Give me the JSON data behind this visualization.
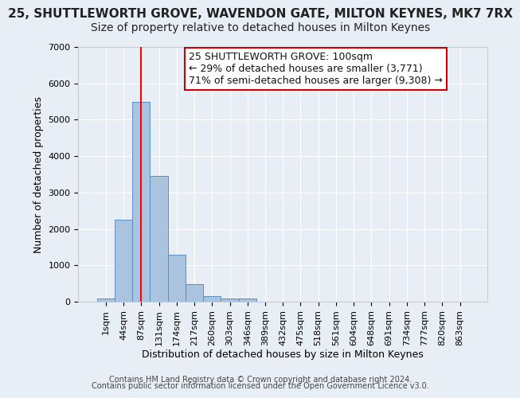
{
  "title": "25, SHUTTLEWORTH GROVE, WAVENDON GATE, MILTON KEYNES, MK7 7RX",
  "subtitle": "Size of property relative to detached houses in Milton Keynes",
  "xlabel": "Distribution of detached houses by size in Milton Keynes",
  "ylabel": "Number of detached properties",
  "bar_heights": [
    100,
    2250,
    5500,
    3450,
    1300,
    480,
    160,
    80,
    80,
    0,
    0,
    0,
    0,
    0,
    0,
    0,
    0,
    0,
    0,
    0,
    0
  ],
  "bar_labels": [
    "1sqm",
    "44sqm",
    "87sqm",
    "131sqm",
    "174sqm",
    "217sqm",
    "260sqm",
    "303sqm",
    "346sqm",
    "389sqm",
    "432sqm",
    "475sqm",
    "518sqm",
    "561sqm",
    "604sqm",
    "648sqm",
    "691sqm",
    "734sqm",
    "777sqm",
    "820sqm",
    "863sqm"
  ],
  "ylim": [
    0,
    7000
  ],
  "yticks": [
    0,
    1000,
    2000,
    3000,
    4000,
    5000,
    6000,
    7000
  ],
  "bar_color": "#aac4e0",
  "bar_edge_color": "#5a8fc0",
  "red_line_x": 2.0,
  "annotation_text": "25 SHUTTLEWORTH GROVE: 100sqm\n← 29% of detached houses are smaller (3,771)\n71% of semi-detached houses are larger (9,308) →",
  "annotation_box_color": "#ffffff",
  "annotation_box_edge_color": "#cc0000",
  "footer1": "Contains HM Land Registry data © Crown copyright and database right 2024.",
  "footer2": "Contains public sector information licensed under the Open Government Licence v3.0.",
  "bg_color": "#e8eef5",
  "plot_bg_color": "#e8eef5",
  "title_fontsize": 11,
  "subtitle_fontsize": 10,
  "axis_label_fontsize": 9,
  "tick_fontsize": 8,
  "annotation_fontsize": 9,
  "footer_fontsize": 7
}
